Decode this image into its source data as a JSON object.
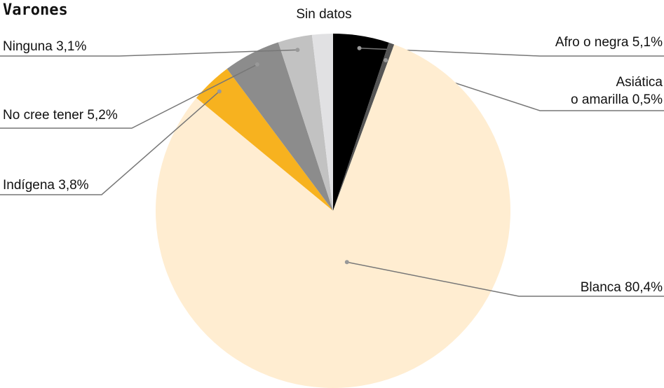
{
  "chart_data": {
    "type": "pie",
    "title": "Varones",
    "categories": [
      "Afro o negra",
      "Asiática\no amarilla",
      "Blanca",
      "Indígena",
      "No cree tener",
      "Ninguna",
      "Sin datos"
    ],
    "values": [
      5.1,
      0.5,
      80.4,
      3.8,
      5.2,
      3.1,
      1.9
    ],
    "value_labels": [
      "5,1%",
      "0,5%",
      "80,4%",
      "3,8%",
      "5,2%",
      "3,1%",
      null
    ],
    "colors": [
      "#000000",
      "#555555",
      "#ffedd1",
      "#f7b21f",
      "#8c8c8c",
      "#c2c2c2",
      "#e1e1e3"
    ]
  }
}
